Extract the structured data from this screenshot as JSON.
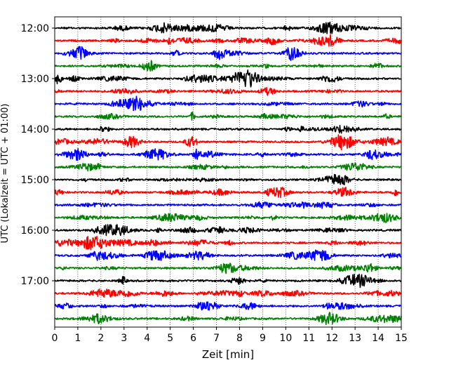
{
  "chart_data": {
    "type": "line",
    "title": "",
    "xlabel": "Zeit  [min]",
    "ylabel": "UTC (Lokalzeit = UTC + 01:00)",
    "xlim": [
      0,
      15
    ],
    "x_ticks": [
      0,
      1,
      2,
      3,
      4,
      5,
      6,
      7,
      8,
      9,
      10,
      11,
      12,
      13,
      14,
      15
    ],
    "y_tick_labels": [
      "12:00",
      "13:00",
      "14:00",
      "15:00",
      "16:00",
      "17:00"
    ],
    "trace_start_times": [
      "12:00",
      "12:15",
      "12:30",
      "12:45",
      "13:00",
      "13:15",
      "13:30",
      "13:45",
      "14:00",
      "14:15",
      "14:30",
      "14:45",
      "15:00",
      "15:15",
      "15:30",
      "15:45",
      "16:00",
      "16:15",
      "16:30",
      "16:45",
      "17:00",
      "17:15",
      "17:30",
      "17:45"
    ],
    "trace_colors": [
      "#000000",
      "#ff0000",
      "#0000ff",
      "#008000"
    ],
    "grid": {
      "x": true,
      "y": false,
      "style": "dotted"
    },
    "legend": "none"
  }
}
